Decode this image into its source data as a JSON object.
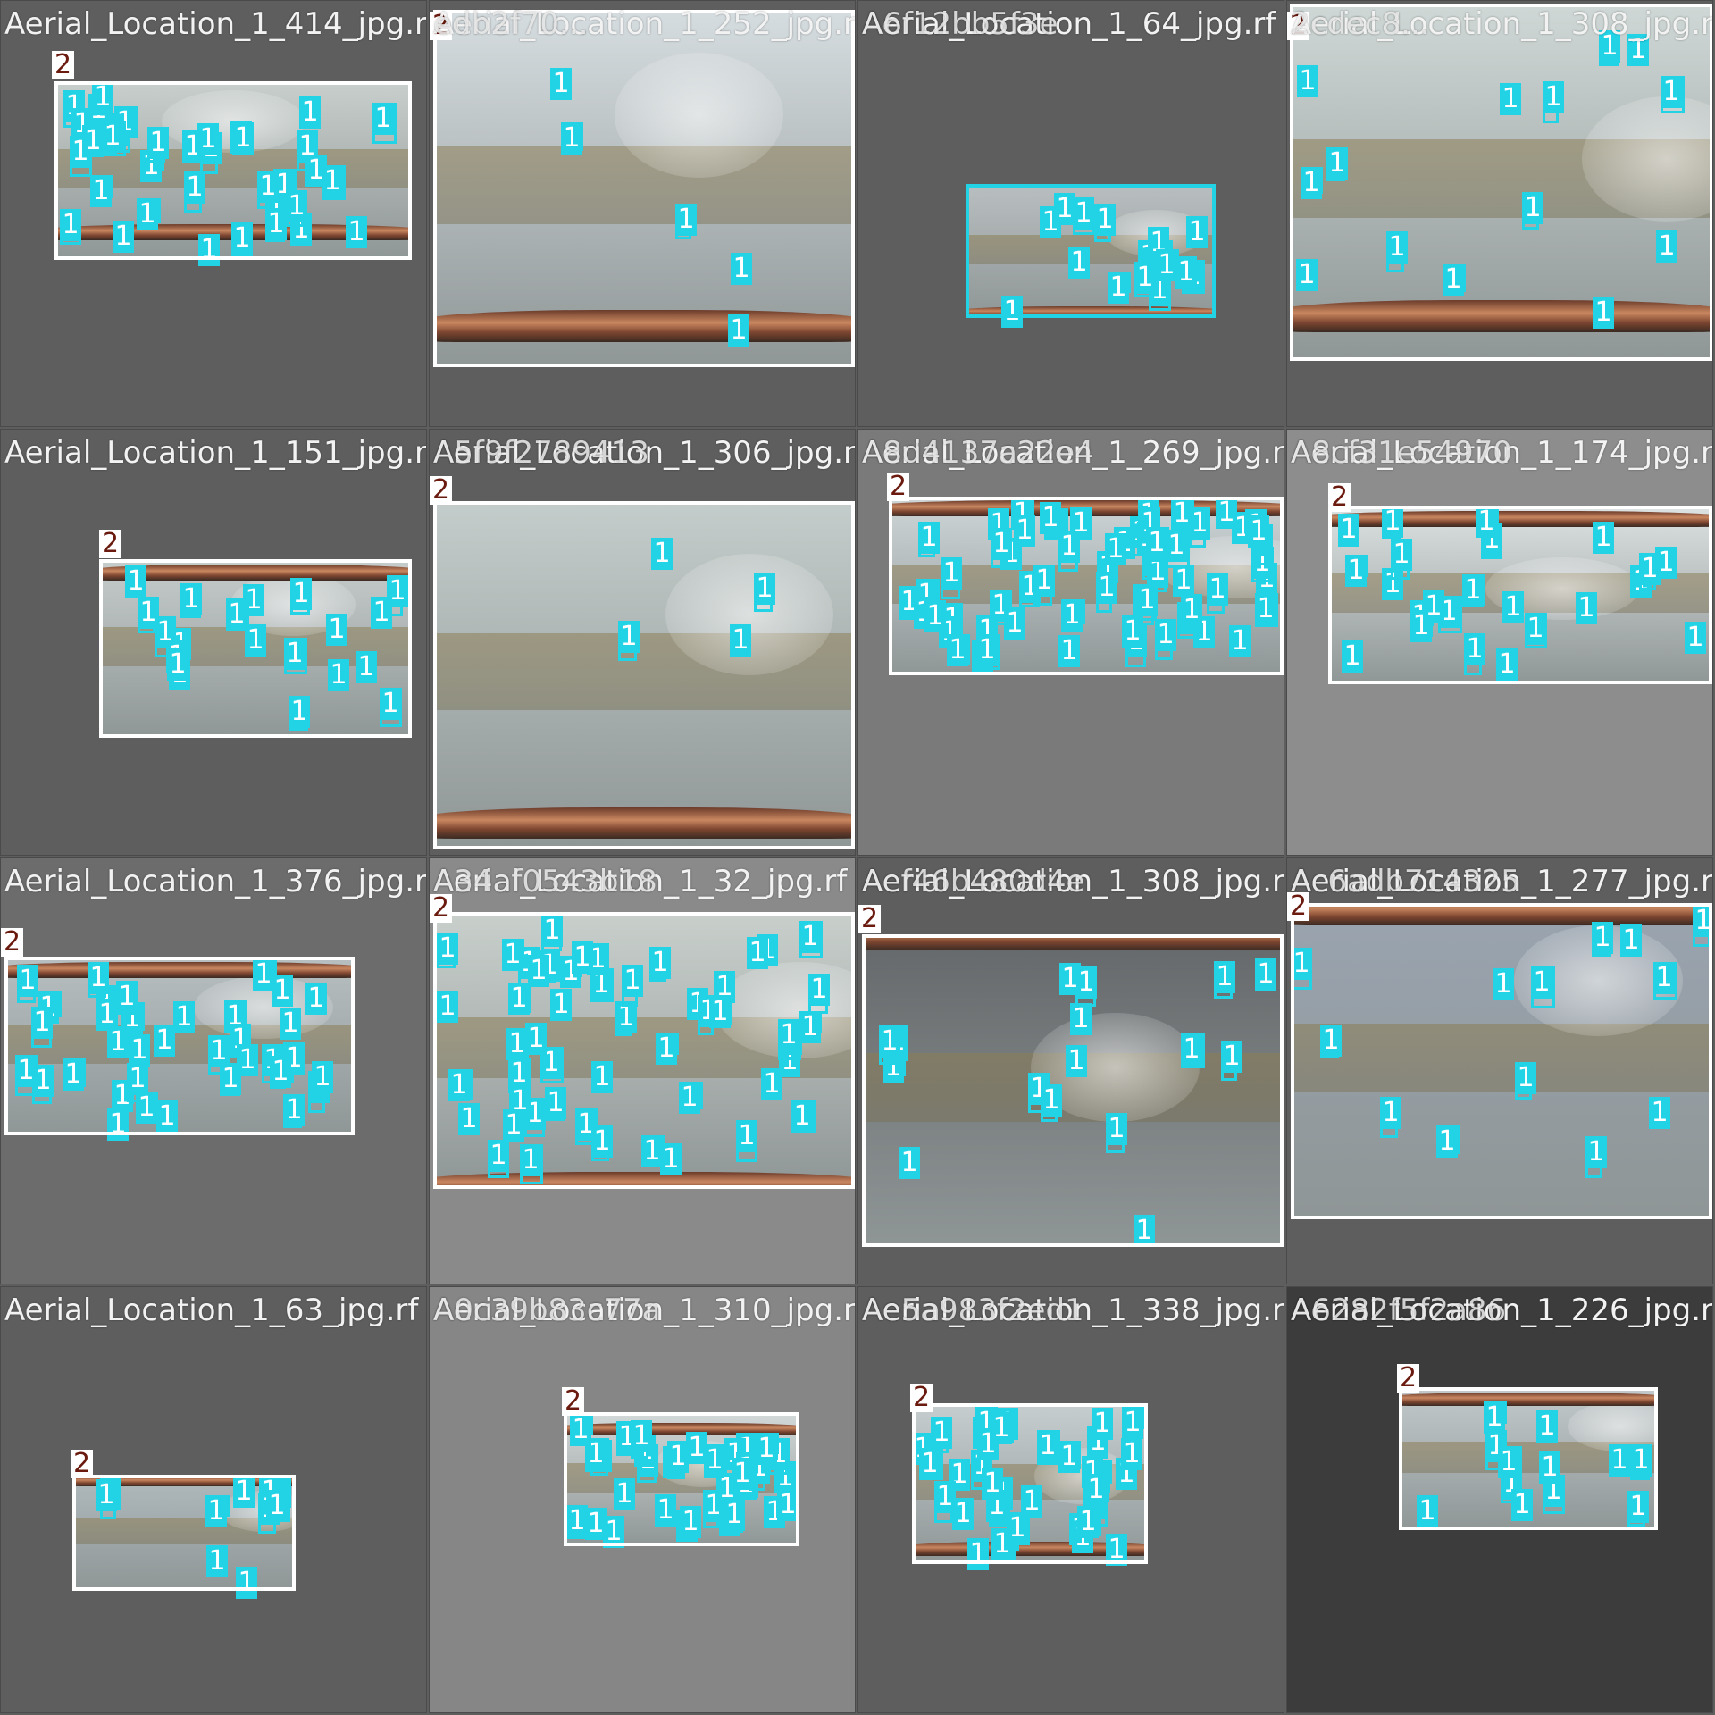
{
  "colors": {
    "class_1": "#22d3e6",
    "class_2": "#ffffff",
    "class_2_text": "#6a1a0e",
    "background": "#5e5e5e"
  },
  "tiles": [
    {
      "caption": "Aerial_Location_1_414_jpg.r",
      "overlay_caption": "",
      "class_2_label": "2",
      "class_1_label": "1",
      "detections": 36
    },
    {
      "caption": "Aerial_Location_1_252_jpg.r",
      "overlay_caption": "edb2f70...",
      "class_2_label": "2",
      "class_1_label": "1",
      "detections": 5
    },
    {
      "caption": "Aerial_Location_1_64_jpg.rf",
      "overlay_caption": "A6f12bb5f3e",
      "class_2_label": "",
      "class_1_label": "1",
      "detections": 16
    },
    {
      "caption": "Aerial_Location_1_308_jpg.r",
      "overlay_caption": "2cdec8...",
      "class_2_label": "2",
      "class_1_label": "1",
      "detections": 14
    },
    {
      "caption": "Aerial_Location_1_151_jpg.r",
      "overlay_caption": "",
      "class_2_label": "2",
      "class_1_label": "1",
      "detections": 20
    },
    {
      "caption": "Aerial_Location_1_306_jpg.r",
      "overlay_caption": "A5f9f2789413",
      "class_2_label": "2",
      "class_1_label": "1",
      "detections": 4
    },
    {
      "caption": "Aerial_Location_1_269_jpg.r",
      "overlay_caption": "A8d4137a22e4",
      "class_2_label": "2",
      "class_1_label": "1",
      "detections": 60
    },
    {
      "caption": "Aerial_Location_1_174_jpg.r",
      "overlay_caption": "A8cf31e54970",
      "class_2_label": "2",
      "class_1_label": "1",
      "detections": 24
    },
    {
      "caption": "Aerial_Location_1_376_jpg.r",
      "overlay_caption": "",
      "class_2_label": "2",
      "class_1_label": "1",
      "detections": 36
    },
    {
      "caption": "Aerial_Location_1_32_jpg.rf",
      "overlay_caption": "A34af0543b18",
      "class_2_label": "2",
      "class_1_label": "1",
      "detections": 50
    },
    {
      "caption": "Aerial_Location_1_308_jpg.r",
      "overlay_caption": "Aef46b480d4e",
      "class_2_label": "2",
      "class_1_label": "1",
      "detections": 16
    },
    {
      "caption": "Aerial_Location_1_277_jpg.r",
      "overlay_caption": "Ac6adb714325",
      "class_2_label": "2",
      "class_1_label": "1",
      "detections": 13
    },
    {
      "caption": "Aerial_Location_1_63_jpg.rf",
      "overlay_caption": "",
      "class_2_label": "2",
      "class_1_label": "1",
      "detections": 10
    },
    {
      "caption": "Aerial_Location_1_310_jpg.r",
      "overlay_caption": "A0c39b83c77a",
      "class_2_label": "2",
      "class_1_label": "1",
      "detections": 34
    },
    {
      "caption": "Aerial_Location_1_338_jpg.r",
      "overlay_caption": "Ae5a983f2ed1",
      "class_2_label": "2",
      "class_1_label": "1",
      "detections": 36
    },
    {
      "caption": "Aerial_Location_1_226_jpg.r",
      "overlay_caption": "A6282f5f2a86",
      "class_2_label": "2",
      "class_1_label": "1",
      "detections": 12
    }
  ]
}
